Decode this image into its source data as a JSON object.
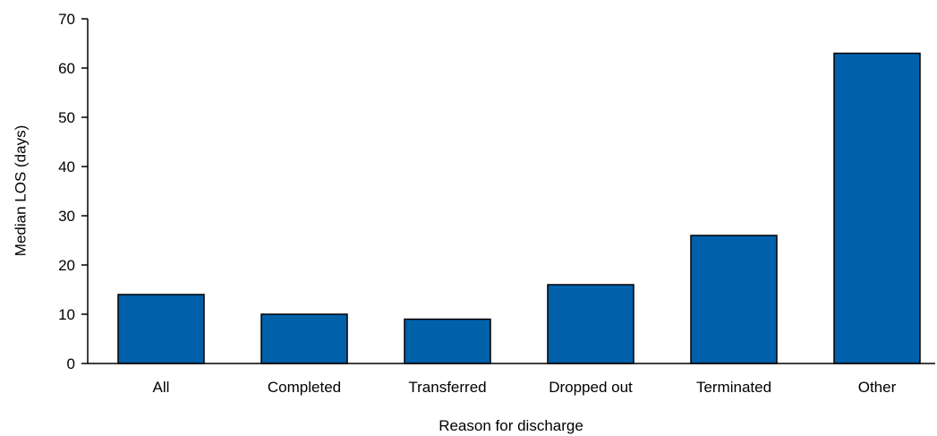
{
  "chart_data": {
    "type": "bar",
    "categories": [
      "All",
      "Completed",
      "Transferred",
      "Dropped out",
      "Terminated",
      "Other"
    ],
    "values": [
      14,
      10,
      9,
      16,
      26,
      63
    ],
    "xlabel": "Reason for discharge",
    "ylabel": "Median LOS (days)",
    "ylim": [
      0,
      70
    ],
    "yticks": [
      0,
      10,
      20,
      30,
      40,
      50,
      60,
      70
    ],
    "grid": false,
    "bar_color": "#0060aa",
    "bar_edge_color": "#000000"
  }
}
